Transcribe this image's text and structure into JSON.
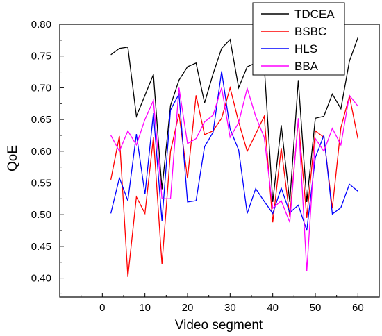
{
  "chart_data": {
    "type": "line",
    "title": "",
    "xlabel": "Video segment",
    "ylabel": "QoE",
    "xlim": [
      -10,
      65
    ],
    "ylim": [
      0.37,
      0.8
    ],
    "xticks": [
      0,
      10,
      20,
      30,
      40,
      50,
      60
    ],
    "yticks": [
      0.4,
      0.45,
      0.5,
      0.55,
      0.6,
      0.65,
      0.7,
      0.75,
      0.8
    ],
    "ytick_labels": [
      "0.40",
      "0.45",
      "0.50",
      "0.55",
      "0.60",
      "0.65",
      "0.70",
      "0.75",
      "0.80"
    ],
    "grid": false,
    "legend": "top-right",
    "x": [
      2,
      4,
      6,
      8,
      10,
      12,
      14,
      16,
      18,
      20,
      22,
      24,
      26,
      28,
      30,
      32,
      34,
      36,
      38,
      40,
      42,
      44,
      46,
      48,
      50,
      52,
      54,
      56,
      58,
      60
    ],
    "series": [
      {
        "name": "TDCEA",
        "color": "#000000",
        "values": [
          0.752,
          0.762,
          0.764,
          0.655,
          0.688,
          0.721,
          0.54,
          0.672,
          0.712,
          0.733,
          0.739,
          0.676,
          0.722,
          0.762,
          0.776,
          0.7,
          0.733,
          0.739,
          0.736,
          0.52,
          0.641,
          0.52,
          0.712,
          0.52,
          0.652,
          0.655,
          0.69,
          0.667,
          0.742,
          0.779
        ]
      },
      {
        "name": "BSBC",
        "color": "#ff0000",
        "values": [
          0.555,
          0.624,
          0.402,
          0.528,
          0.502,
          0.622,
          0.422,
          0.6,
          0.659,
          0.557,
          0.688,
          0.626,
          0.632,
          0.652,
          0.7,
          0.646,
          0.6,
          0.627,
          0.655,
          0.488,
          0.605,
          0.497,
          0.649,
          0.495,
          0.632,
          0.622,
          0.51,
          0.637,
          0.687,
          0.62
        ]
      },
      {
        "name": "HLS",
        "color": "#0000ff",
        "values": [
          0.502,
          0.558,
          0.522,
          0.627,
          0.532,
          0.66,
          0.49,
          0.665,
          0.69,
          0.52,
          0.522,
          0.607,
          0.63,
          0.726,
          0.635,
          0.602,
          0.502,
          0.541,
          0.521,
          0.502,
          0.542,
          0.503,
          0.515,
          0.475,
          0.59,
          0.625,
          0.501,
          0.511,
          0.548,
          0.537
        ]
      },
      {
        "name": "BBA",
        "color": "#ff00ff",
        "values": [
          0.625,
          0.6,
          0.632,
          0.61,
          0.65,
          0.68,
          0.525,
          0.525,
          0.7,
          0.612,
          0.62,
          0.646,
          0.657,
          0.7,
          0.622,
          0.645,
          0.699,
          0.655,
          0.622,
          0.51,
          0.522,
          0.488,
          0.652,
          0.411,
          0.62,
          0.6,
          0.636,
          0.61,
          0.688,
          0.671
        ]
      }
    ]
  }
}
